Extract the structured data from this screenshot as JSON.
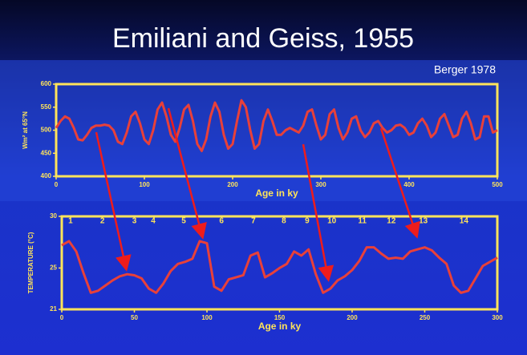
{
  "title": "Emiliani and Geiss, 1955",
  "source": "Berger 1978",
  "chart_data": [
    {
      "type": "line",
      "ylabel": "Wm² at 65°N",
      "xlabel": "Age in ky",
      "xlim": [
        0,
        500
      ],
      "xticks": [
        0,
        100,
        200,
        300,
        400,
        500
      ],
      "ylim": [
        400,
        600
      ],
      "yticks": [
        400,
        450,
        500,
        550,
        600
      ],
      "x": [
        0,
        5,
        10,
        15,
        20,
        25,
        30,
        35,
        40,
        45,
        50,
        55,
        60,
        65,
        70,
        75,
        80,
        85,
        90,
        95,
        100,
        105,
        110,
        115,
        120,
        125,
        130,
        135,
        140,
        145,
        150,
        155,
        160,
        165,
        170,
        175,
        180,
        185,
        190,
        195,
        200,
        205,
        210,
        215,
        220,
        225,
        230,
        235,
        240,
        245,
        250,
        255,
        260,
        265,
        270,
        275,
        280,
        285,
        290,
        295,
        300,
        305,
        310,
        315,
        320,
        325,
        330,
        335,
        340,
        345,
        350,
        355,
        360,
        365,
        370,
        375,
        380,
        385,
        390,
        395,
        400,
        405,
        410,
        415,
        420,
        425,
        430,
        435,
        440,
        445,
        450,
        455,
        460,
        465,
        470,
        475,
        480,
        485,
        490,
        495,
        500
      ],
      "series": [
        {
          "color": "#e8403a",
          "values": [
            505,
            520,
            530,
            525,
            505,
            480,
            478,
            490,
            505,
            510,
            510,
            512,
            510,
            500,
            475,
            470,
            495,
            530,
            540,
            515,
            480,
            470,
            500,
            545,
            560,
            530,
            490,
            475,
            505,
            545,
            555,
            520,
            470,
            455,
            480,
            530,
            560,
            540,
            490,
            460,
            470,
            520,
            565,
            550,
            500,
            460,
            470,
            520,
            545,
            520,
            490,
            490,
            500,
            505,
            500,
            495,
            510,
            540,
            545,
            510,
            480,
            490,
            535,
            545,
            505,
            480,
            495,
            525,
            530,
            500,
            485,
            495,
            515,
            520,
            505,
            495,
            500,
            510,
            512,
            505,
            490,
            495,
            515,
            525,
            510,
            485,
            495,
            525,
            535,
            510,
            485,
            490,
            525,
            540,
            515,
            480,
            485,
            530,
            530,
            495,
            500
          ]
        }
      ]
    },
    {
      "type": "line",
      "ylabel": "TEMPERATURE (°C)",
      "xlabel": "Age in ky",
      "xlim": [
        0,
        300
      ],
      "xticks": [
        0,
        50,
        100,
        150,
        200,
        250,
        300
      ],
      "ylim": [
        21,
        30
      ],
      "yticks": [
        21,
        25,
        30
      ],
      "annotations": [
        {
          "label": "1",
          "x": 6
        },
        {
          "label": "2",
          "x": 28
        },
        {
          "label": "3",
          "x": 50
        },
        {
          "label": "4",
          "x": 63
        },
        {
          "label": "5",
          "x": 84
        },
        {
          "label": "6",
          "x": 110
        },
        {
          "label": "7",
          "x": 132
        },
        {
          "label": "8",
          "x": 153
        },
        {
          "label": "9",
          "x": 169
        },
        {
          "label": "10",
          "x": 186
        },
        {
          "label": "11",
          "x": 207
        },
        {
          "label": "12",
          "x": 227
        },
        {
          "label": "13",
          "x": 249
        },
        {
          "label": "14",
          "x": 277
        }
      ],
      "x": [
        0,
        5,
        10,
        15,
        20,
        25,
        30,
        35,
        40,
        45,
        50,
        55,
        60,
        65,
        70,
        75,
        80,
        85,
        90,
        95,
        100,
        105,
        110,
        115,
        120,
        125,
        130,
        135,
        140,
        145,
        150,
        155,
        160,
        165,
        170,
        175,
        180,
        185,
        190,
        195,
        200,
        205,
        210,
        215,
        220,
        225,
        230,
        235,
        240,
        245,
        250,
        255,
        260,
        265,
        270,
        275,
        280,
        285,
        290,
        295,
        300
      ],
      "series": [
        {
          "color": "#e8403a",
          "values": [
            27.2,
            27.6,
            26.6,
            24.5,
            22.6,
            22.8,
            23.3,
            23.8,
            24.2,
            24.4,
            24.3,
            24.0,
            23.0,
            22.6,
            23.5,
            24.7,
            25.4,
            25.6,
            25.9,
            27.6,
            27.4,
            23.2,
            22.8,
            23.9,
            24.1,
            24.3,
            26.2,
            26.5,
            24.1,
            24.5,
            25.0,
            25.4,
            26.6,
            26.2,
            26.8,
            24.4,
            22.6,
            23.0,
            23.8,
            24.2,
            24.8,
            25.7,
            27.0,
            27.0,
            26.4,
            25.9,
            26.0,
            25.9,
            26.6,
            26.8,
            27.0,
            26.7,
            26.0,
            25.4,
            23.3,
            22.6,
            22.8,
            24.0,
            25.2,
            25.6,
            26.0
          ]
        }
      ]
    }
  ]
}
